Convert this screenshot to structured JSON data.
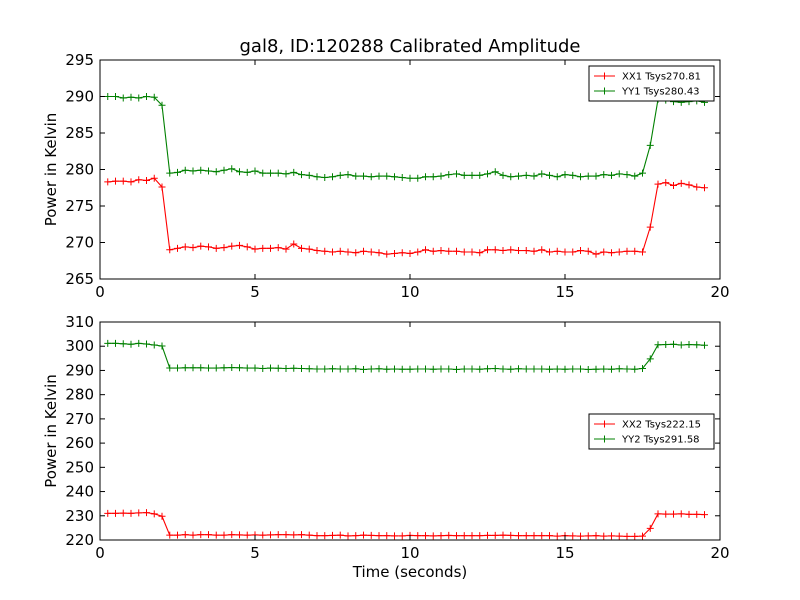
{
  "chart_data": [
    {
      "type": "line",
      "title": "gal8, ID:120288 Calibrated Amplitude",
      "xlabel": "",
      "ylabel": "Power in Kelvin",
      "xlim": [
        0,
        20
      ],
      "ylim": [
        265,
        295
      ],
      "xticks": [
        0,
        5,
        10,
        15,
        20
      ],
      "yticks": [
        265,
        270,
        275,
        280,
        285,
        290,
        295
      ],
      "legend_position": "top-right",
      "x": [
        0.25,
        0.5,
        0.75,
        1.0,
        1.25,
        1.5,
        1.75,
        2.0,
        2.25,
        2.5,
        2.75,
        3.0,
        3.25,
        3.5,
        3.75,
        4.0,
        4.25,
        4.5,
        4.75,
        5.0,
        5.25,
        5.5,
        5.75,
        6.0,
        6.25,
        6.5,
        6.75,
        7.0,
        7.25,
        7.5,
        7.75,
        8.0,
        8.25,
        8.5,
        8.75,
        9.0,
        9.25,
        9.5,
        9.75,
        10.0,
        10.25,
        10.5,
        10.75,
        11.0,
        11.25,
        11.5,
        11.75,
        12.0,
        12.25,
        12.5,
        12.75,
        13.0,
        13.25,
        13.5,
        13.75,
        14.0,
        14.25,
        14.5,
        14.75,
        15.0,
        15.25,
        15.5,
        15.75,
        16.0,
        16.25,
        16.5,
        16.75,
        17.0,
        17.25,
        17.5,
        17.75,
        18.0,
        18.25,
        18.5,
        18.75,
        19.0,
        19.25,
        19.5
      ],
      "series": [
        {
          "name": "XX1 Tsys270.81",
          "color": "#ff0000",
          "values": [
            278.3,
            278.4,
            278.4,
            278.3,
            278.6,
            278.5,
            278.8,
            277.6,
            269.0,
            269.2,
            269.4,
            269.3,
            269.5,
            269.4,
            269.2,
            269.3,
            269.5,
            269.6,
            269.4,
            269.1,
            269.2,
            269.2,
            269.3,
            269.1,
            269.8,
            269.2,
            269.1,
            268.9,
            268.8,
            268.7,
            268.8,
            268.7,
            268.6,
            268.8,
            268.7,
            268.6,
            268.4,
            268.5,
            268.6,
            268.5,
            268.7,
            269.0,
            268.8,
            268.9,
            268.8,
            268.8,
            268.7,
            268.7,
            268.6,
            269.0,
            269.0,
            268.9,
            269.0,
            268.9,
            268.9,
            268.8,
            269.0,
            268.7,
            268.8,
            268.7,
            268.7,
            268.9,
            268.8,
            268.4,
            268.7,
            268.6,
            268.7,
            268.8,
            268.8,
            268.7,
            272.1,
            278.0,
            278.2,
            277.8,
            278.1,
            277.9,
            277.6,
            277.5
          ]
        },
        {
          "name": "YY1 Tsys280.43",
          "color": "#008000",
          "values": [
            290.0,
            290.0,
            289.8,
            289.9,
            289.8,
            290.0,
            289.9,
            288.8,
            279.5,
            279.6,
            279.9,
            279.8,
            279.9,
            279.8,
            279.7,
            279.9,
            280.1,
            279.7,
            279.6,
            279.8,
            279.5,
            279.5,
            279.5,
            279.4,
            279.6,
            279.3,
            279.2,
            279.0,
            278.9,
            279.0,
            279.2,
            279.3,
            279.1,
            279.1,
            279.0,
            279.1,
            279.1,
            279.0,
            278.9,
            278.8,
            278.8,
            279.0,
            279.0,
            279.1,
            279.3,
            279.4,
            279.2,
            279.2,
            279.2,
            279.4,
            279.7,
            279.2,
            279.0,
            279.1,
            279.2,
            279.1,
            279.4,
            279.2,
            279.0,
            279.3,
            279.2,
            279.0,
            279.1,
            279.1,
            279.3,
            279.2,
            279.4,
            279.3,
            279.1,
            279.5,
            283.3,
            289.6,
            289.5,
            289.3,
            289.2,
            289.3,
            289.4,
            289.2
          ]
        }
      ]
    },
    {
      "type": "line",
      "title": "",
      "xlabel": "Time (seconds)",
      "ylabel": "Power in Kelvin",
      "xlim": [
        0,
        20
      ],
      "ylim": [
        220,
        310
      ],
      "xticks": [
        0,
        5,
        10,
        15,
        20
      ],
      "yticks": [
        220,
        230,
        240,
        250,
        260,
        270,
        280,
        290,
        300,
        310
      ],
      "legend_position": "center-right",
      "x": [
        0.25,
        0.5,
        0.75,
        1.0,
        1.25,
        1.5,
        1.75,
        2.0,
        2.25,
        2.5,
        2.75,
        3.0,
        3.25,
        3.5,
        3.75,
        4.0,
        4.25,
        4.5,
        4.75,
        5.0,
        5.25,
        5.5,
        5.75,
        6.0,
        6.25,
        6.5,
        6.75,
        7.0,
        7.25,
        7.5,
        7.75,
        8.0,
        8.25,
        8.5,
        8.75,
        9.0,
        9.25,
        9.5,
        9.75,
        10.0,
        10.25,
        10.5,
        10.75,
        11.0,
        11.25,
        11.5,
        11.75,
        12.0,
        12.25,
        12.5,
        12.75,
        13.0,
        13.25,
        13.5,
        13.75,
        14.0,
        14.25,
        14.5,
        14.75,
        15.0,
        15.25,
        15.5,
        15.75,
        16.0,
        16.25,
        16.5,
        16.75,
        17.0,
        17.25,
        17.5,
        17.75,
        18.0,
        18.25,
        18.5,
        18.75,
        19.0,
        19.25,
        19.5
      ],
      "series": [
        {
          "name": "XX2 Tsys222.15",
          "color": "#ff0000",
          "values": [
            231.0,
            231.0,
            231.1,
            231.0,
            231.2,
            231.3,
            230.8,
            229.8,
            222.0,
            222.0,
            222.2,
            222.0,
            222.2,
            222.2,
            222.0,
            222.0,
            222.2,
            222.1,
            222.0,
            222.1,
            222.0,
            222.1,
            222.2,
            222.2,
            222.1,
            222.2,
            222.0,
            221.8,
            221.8,
            221.9,
            222.0,
            221.7,
            221.8,
            222.0,
            221.9,
            221.8,
            221.8,
            221.7,
            221.7,
            221.9,
            221.8,
            221.8,
            221.7,
            221.8,
            221.9,
            221.8,
            221.8,
            221.8,
            221.8,
            221.9,
            221.9,
            222.0,
            221.9,
            221.8,
            221.8,
            221.8,
            221.8,
            221.8,
            221.6,
            221.8,
            221.7,
            221.6,
            221.7,
            221.8,
            221.6,
            221.7,
            221.6,
            221.5,
            221.5,
            221.6,
            224.8,
            230.8,
            230.7,
            230.7,
            230.8,
            230.6,
            230.6,
            230.5
          ]
        },
        {
          "name": "YY2 Tsys291.58",
          "color": "#008000",
          "values": [
            301.2,
            301.2,
            301.0,
            300.8,
            301.2,
            300.9,
            300.5,
            300.1,
            291.0,
            291.0,
            291.1,
            291.1,
            291.1,
            291.0,
            291.0,
            291.1,
            291.2,
            291.1,
            291.0,
            291.0,
            290.8,
            291.0,
            290.9,
            290.8,
            290.9,
            290.8,
            290.7,
            290.6,
            290.6,
            290.7,
            290.6,
            290.6,
            290.7,
            290.4,
            290.6,
            290.7,
            290.5,
            290.6,
            290.5,
            290.5,
            290.6,
            290.6,
            290.5,
            290.6,
            290.6,
            290.4,
            290.6,
            290.6,
            290.5,
            290.7,
            290.8,
            290.6,
            290.5,
            290.7,
            290.6,
            290.6,
            290.6,
            290.5,
            290.6,
            290.5,
            290.6,
            290.6,
            290.4,
            290.5,
            290.6,
            290.5,
            290.7,
            290.6,
            290.5,
            290.8,
            294.8,
            300.6,
            300.7,
            300.8,
            300.5,
            300.7,
            300.6,
            300.4
          ]
        }
      ]
    }
  ]
}
